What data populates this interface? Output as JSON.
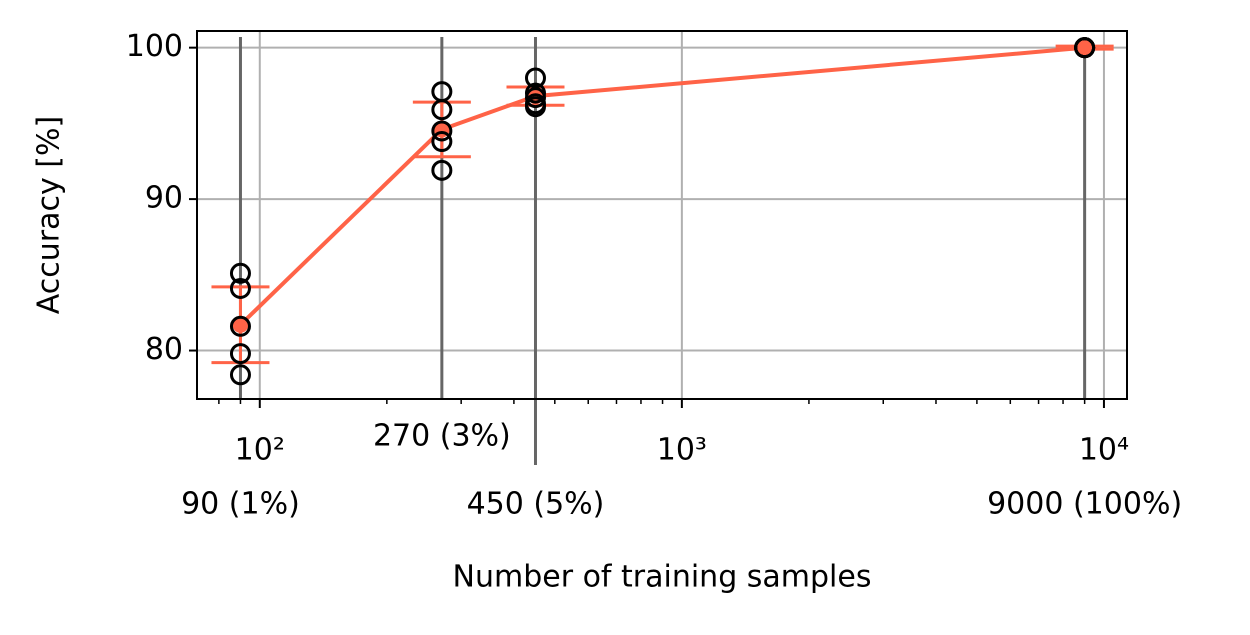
{
  "chart_data": {
    "type": "errorbar-line",
    "xlabel": "Number of training samples",
    "ylabel": "Accuracy [%]",
    "xscale": "log",
    "xlim": [
      71,
      11340
    ],
    "ylim": [
      76.8,
      101.1
    ],
    "xticks": [
      {
        "value": 100,
        "label": "10²"
      },
      {
        "value": 1000,
        "label": "10³"
      },
      {
        "value": 10000,
        "label": "10⁴"
      }
    ],
    "yticks": [
      80,
      90,
      100
    ],
    "sample_ticks": [
      {
        "value": 90,
        "label": "90 (1%)"
      },
      {
        "value": 270,
        "label": "270 (3%)"
      },
      {
        "value": 450,
        "label": "450 (5%)"
      },
      {
        "value": 9000,
        "label": "9000 (100%)"
      }
    ],
    "x": [
      90,
      270,
      450,
      9000
    ],
    "mean": [
      81.7,
      94.6,
      96.8,
      100
    ],
    "error": [
      2.5,
      1.8,
      0.6,
      0.1
    ],
    "runs": [
      [
        85.1,
        84.1,
        81.6,
        79.8,
        78.4
      ],
      [
        97.1,
        95.9,
        94.5,
        93.8,
        91.9
      ],
      [
        98.0,
        97.0,
        96.7,
        96.3,
        96.1
      ],
      [
        100,
        100,
        100,
        100,
        100
      ]
    ],
    "color": "#ff6347",
    "grid": true
  }
}
